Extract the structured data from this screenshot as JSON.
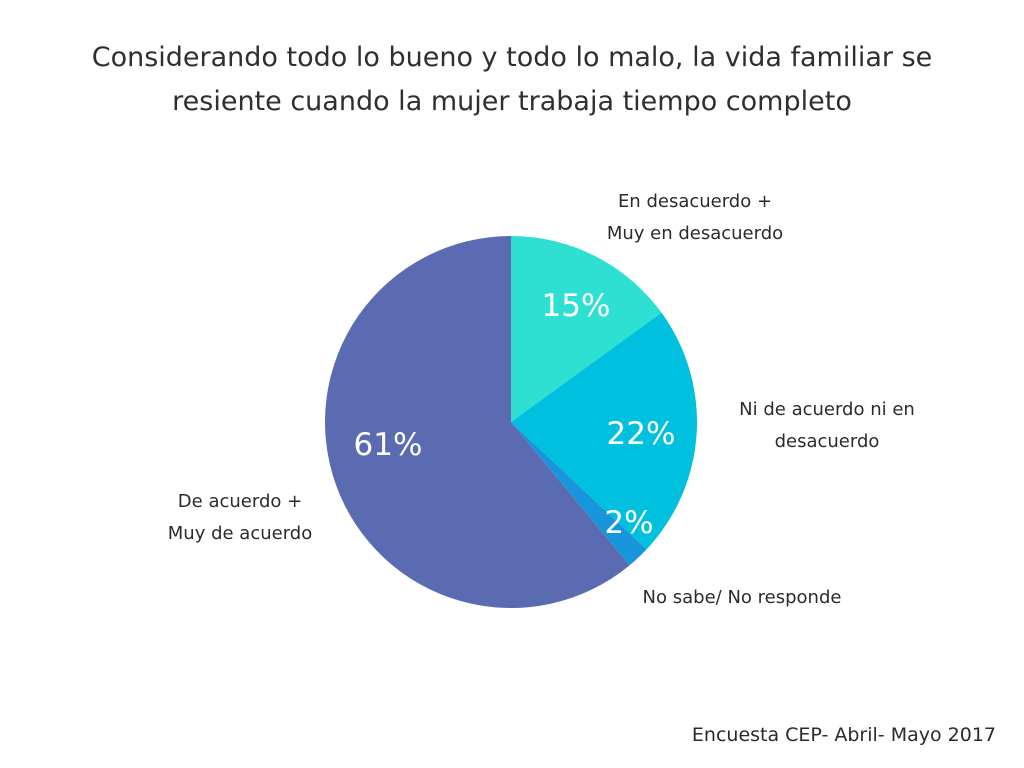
{
  "chart_data": {
    "type": "pie",
    "title": "Considerando todo lo bueno y todo lo malo, la vida familiar se resiente cuando la mujer trabaja tiempo completo",
    "title_lines": [
      "Considerando todo lo bueno y todo lo malo, la vida familiar se",
      "resiente cuando la mujer trabaja tiempo completo"
    ],
    "slices": [
      {
        "label_lines": [
          "En desacuerdo +",
          "Muy  en desacuerdo"
        ],
        "value": 15,
        "value_label": "15%",
        "color": "#2de0d2"
      },
      {
        "label_lines": [
          "Ni de acuerdo ni en",
          "desacuerdo"
        ],
        "value": 22,
        "value_label": "22%",
        "color": "#00c0e0"
      },
      {
        "label_lines": [
          "No sabe/ No responde"
        ],
        "value": 2,
        "value_label": "2%",
        "color": "#1896dc"
      },
      {
        "label_lines": [
          "De acuerdo +",
          "Muy de acuerdo"
        ],
        "value": 61,
        "value_label": "61%",
        "color": "#5a6bb2"
      }
    ],
    "source": "Encuesta CEP- Abril- Mayo 2017"
  }
}
